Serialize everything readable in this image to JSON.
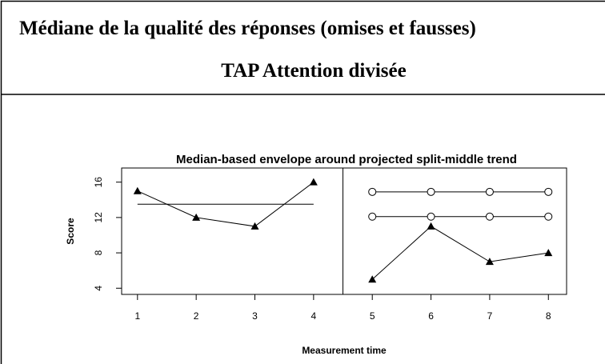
{
  "header": {
    "title": "Médiane de la qualité des réponses (omises et fausses)",
    "subtitle": "TAP Attention divisée"
  },
  "chart_data": {
    "type": "line",
    "title": "Median-based envelope around projected split-middle trend",
    "x_label": "Measurement time",
    "y_label": "Score",
    "x": [
      1,
      2,
      3,
      4,
      5,
      6,
      7,
      8
    ],
    "xlim": [
      0.73,
      8.31
    ],
    "xticks": [
      1,
      2,
      3,
      4,
      5,
      6,
      7,
      8
    ],
    "ylim": [
      3.3,
      17.6
    ],
    "yticks": [
      4,
      8,
      12,
      16
    ],
    "phase_lines": [
      4.5
    ],
    "series": [
      {
        "color": "#000000",
        "marker": "triangle",
        "values": [
          15,
          12,
          11,
          16,
          null,
          null,
          null,
          null
        ]
      },
      {
        "color": "#000000",
        "marker": "triangle",
        "values": [
          null,
          null,
          null,
          null,
          5,
          11,
          7,
          8
        ]
      },
      {
        "color": "#000000",
        "marker": "none",
        "values": [
          13.5,
          13.5,
          13.5,
          13.5,
          null,
          null,
          null,
          null
        ]
      },
      {
        "color": "#000000",
        "marker": "circle",
        "values": [
          null,
          null,
          null,
          null,
          14.9,
          14.9,
          14.9,
          14.9
        ]
      },
      {
        "color": "#000000",
        "marker": "circle",
        "values": [
          null,
          null,
          null,
          null,
          12.1,
          12.1,
          12.1,
          12.1
        ]
      }
    ]
  }
}
